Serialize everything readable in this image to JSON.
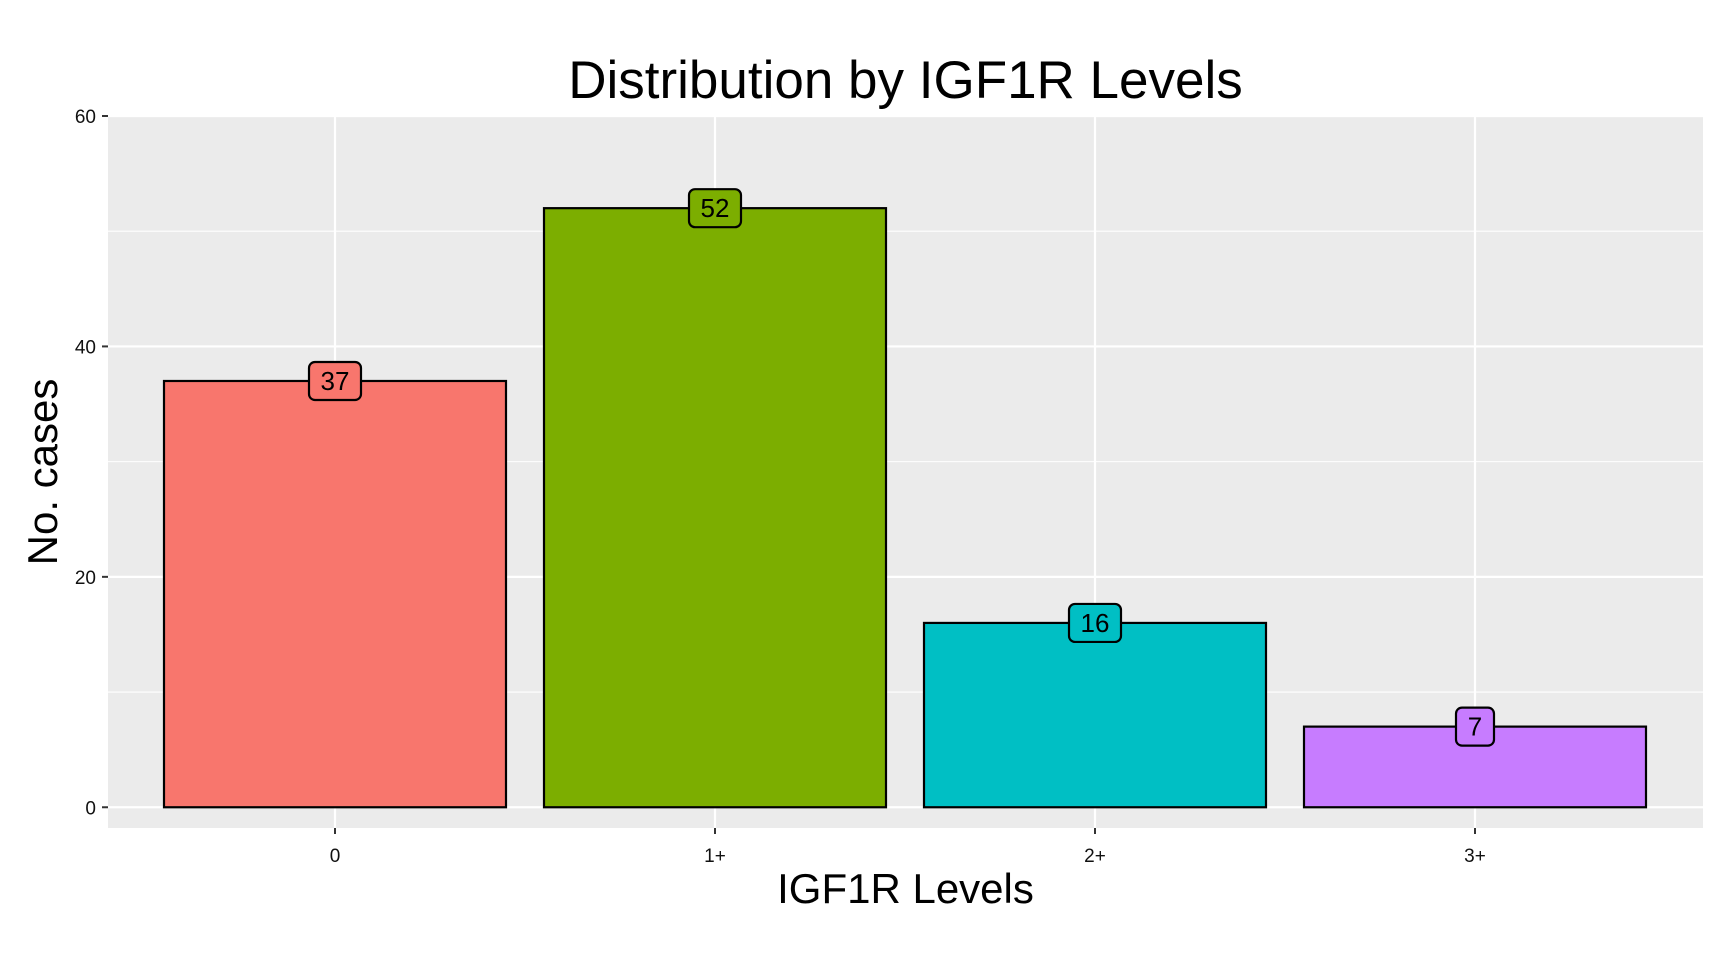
{
  "chart_data": {
    "type": "bar",
    "title": "Distribution by IGF1R Levels",
    "xlabel": "IGF1R Levels",
    "ylabel": "No. cases",
    "categories": [
      "0",
      "1+",
      "2+",
      "3+"
    ],
    "values": [
      37,
      52,
      16,
      7
    ],
    "data_labels": [
      "37",
      "52",
      "16",
      "7"
    ],
    "colors": [
      "#F8766D",
      "#7CAE00",
      "#00BFC4",
      "#C77CFF"
    ],
    "ylim": [
      -1.8,
      60
    ],
    "yticks": [
      0,
      20,
      40,
      60
    ],
    "ytick_labels": [
      "0",
      "20",
      "40",
      "60"
    ],
    "grid": true,
    "legend": "none",
    "panel_background": "#EBEBEB",
    "grid_color": "#FFFFFF",
    "bar_outline": "#000000"
  }
}
